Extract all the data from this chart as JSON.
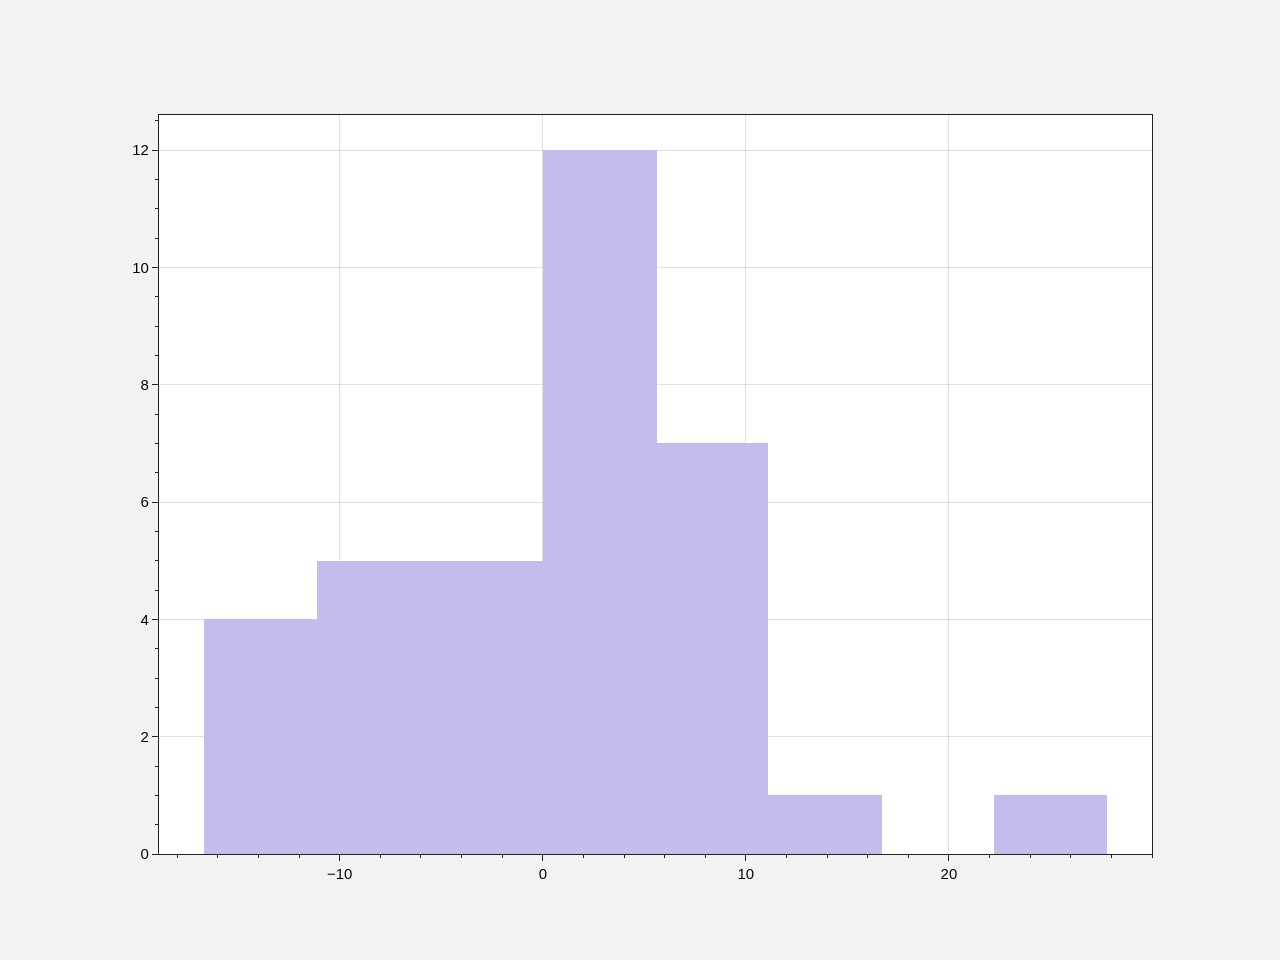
{
  "chart_data": {
    "type": "histogram",
    "bins": [
      -16.7,
      -11.1,
      -5.5,
      0.0,
      5.6,
      11.1,
      16.7,
      22.2,
      27.8
    ],
    "values": [
      4,
      5,
      5,
      12,
      7,
      1,
      0,
      1
    ],
    "color": "#c3bdeb",
    "xlim": [
      -18.9,
      30.0
    ],
    "ylim": [
      0,
      12.6
    ],
    "xticks": [
      -10,
      0,
      10,
      20
    ],
    "yticks": [
      0,
      2,
      4,
      6,
      8,
      10,
      12
    ],
    "grid": true
  }
}
